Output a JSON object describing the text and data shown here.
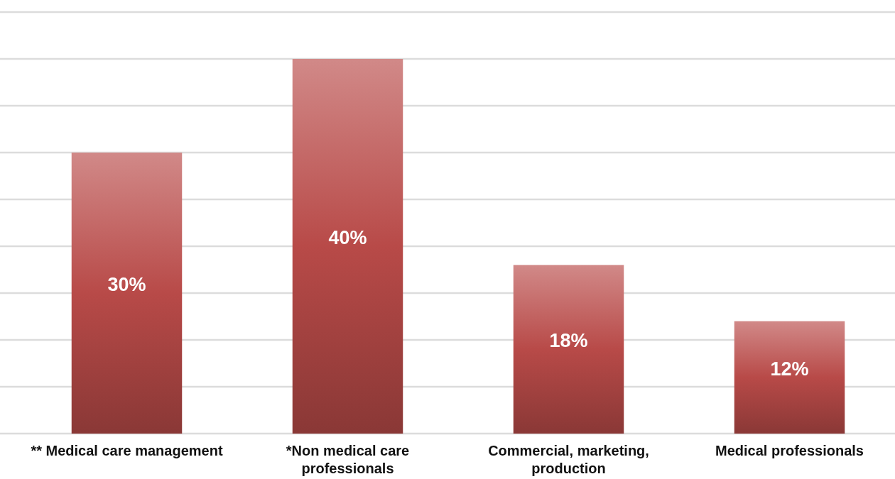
{
  "chart_data": {
    "type": "bar",
    "categories": [
      "** Medical care management",
      "*Non medical care professionals",
      "Commercial, marketing, production",
      "Medical professionals"
    ],
    "values": [
      30,
      40,
      18,
      12
    ],
    "color": "#b84a48",
    "value_labels": [
      "30%",
      "40%",
      "18%",
      "12%"
    ],
    "grid": "y",
    "tick_labels": "x"
  }
}
